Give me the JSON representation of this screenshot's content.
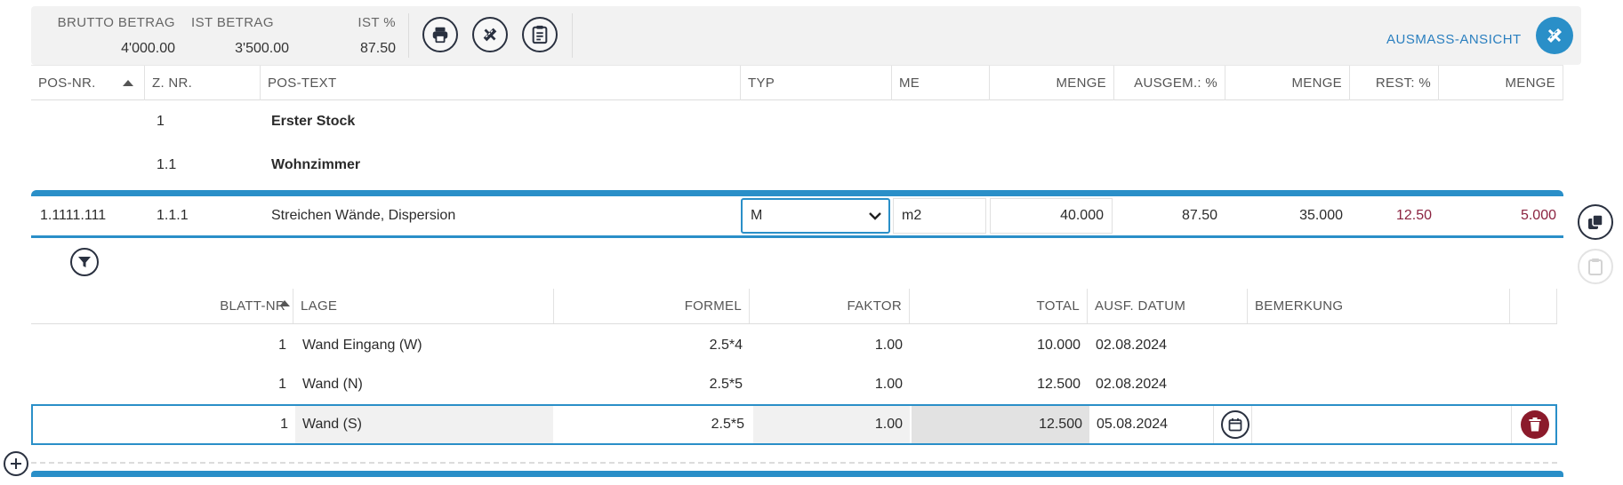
{
  "summary": {
    "brutto_label": "BRUTTO BETRAG",
    "brutto_value": "4'000.00",
    "ist_label": "IST BETRAG",
    "ist_value": "3'500.00",
    "ist_pct_label": "IST %",
    "ist_pct_value": "87.50",
    "view_label": "AUSMASS-ANSICHT"
  },
  "table": {
    "headers": {
      "pos_nr": "POS-NR.",
      "z_nr": "Z. NR.",
      "pos_text": "POS-TEXT",
      "typ": "TYP",
      "me": "ME",
      "menge": "MENGE",
      "ausgem_pct": "AUSGEM.: %",
      "menge2": "MENGE",
      "rest_pct": "REST: %",
      "menge3": "MENGE"
    },
    "groups": [
      {
        "z_nr": "1",
        "text": "Erster Stock"
      },
      {
        "z_nr": "1.1",
        "text": "Wohnzimmer"
      }
    ],
    "position": {
      "pos_nr": "1.1111.111",
      "z_nr": "1.1.1",
      "text": "Streichen Wände, Dispersion",
      "typ": "M",
      "me": "m2",
      "menge": "40.000",
      "ausgem_pct": "87.50",
      "ausgem_menge": "35.000",
      "rest_pct": "12.50",
      "rest_menge": "5.000"
    }
  },
  "subtable": {
    "headers": {
      "blatt_nr": "BLATT-NR",
      "lage": "LAGE",
      "formel": "FORMEL",
      "faktor": "FAKTOR",
      "total": "TOTAL",
      "ausf_datum": "AUSF. DATUM",
      "bemerkung": "BEMERKUNG"
    },
    "rows": [
      {
        "blatt": "1",
        "lage": "Wand Eingang (W)",
        "formel": "2.5*4",
        "faktor": "1.00",
        "total": "10.000",
        "datum": "02.08.2024",
        "bemerkung": ""
      },
      {
        "blatt": "1",
        "lage": "Wand (N)",
        "formel": "2.5*5",
        "faktor": "1.00",
        "total": "12.500",
        "datum": "02.08.2024",
        "bemerkung": ""
      }
    ],
    "edit_row": {
      "blatt": "1",
      "lage": "Wand (S)",
      "formel": "2.5*5",
      "faktor": "1.00",
      "total": "12.500",
      "datum": "05.08.2024",
      "bemerkung": ""
    }
  },
  "icons": {
    "print": "printer-icon",
    "edit_measure": "ruler-pencil-icon",
    "document": "clipboard-document-icon",
    "view": "ruler-pencil-icon",
    "copy": "copy-icon",
    "paste": "paste-icon",
    "filter": "filter-icon",
    "calendar": "calendar-icon",
    "delete": "trash-icon",
    "add": "plus-icon"
  },
  "colors": {
    "accent": "#2a8fc8",
    "danger": "#8b1a2b",
    "rest_text": "#8b2340"
  }
}
